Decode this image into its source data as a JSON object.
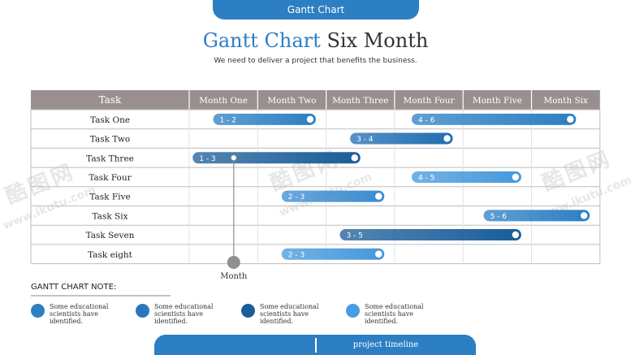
{
  "header": {
    "tab_label": "Gantt Chart"
  },
  "title": {
    "part1": "Gantt Chart",
    "part2": "Six Month"
  },
  "subtitle": "We need to deliver a project that benefits the business.",
  "watermark": {
    "brand": "酷图网",
    "url": "www.ikutu.com"
  },
  "chart_data": {
    "type": "gantt",
    "task_header": "Task",
    "columns": [
      "Month One",
      "Month Two",
      "Month Three",
      "Month Four",
      "Month Five",
      "Month Six"
    ],
    "tasks": [
      {
        "name": "Task One",
        "bars": [
          {
            "label": "1 - 2",
            "start": 0.35,
            "end": 1.85,
            "color": "#2c7fc3"
          },
          {
            "label": "4 - 6",
            "start": 3.25,
            "end": 5.65,
            "color": "#2c7fc3"
          }
        ]
      },
      {
        "name": "Task Two",
        "bars": [
          {
            "label": "3 - 4",
            "start": 2.35,
            "end": 3.85,
            "color": "#1f6db0"
          }
        ]
      },
      {
        "name": "Task Three",
        "bars": [
          {
            "label": "1 - 3",
            "start": 0.05,
            "end": 2.5,
            "color": "#1a5d99"
          }
        ]
      },
      {
        "name": "Task Four",
        "bars": [
          {
            "label": "4 - 5",
            "start": 3.25,
            "end": 4.85,
            "color": "#4598dc"
          }
        ]
      },
      {
        "name": "Task Five",
        "bars": [
          {
            "label": "2 - 3",
            "start": 1.35,
            "end": 2.85,
            "color": "#3a8bd0"
          }
        ]
      },
      {
        "name": "Task Six",
        "bars": [
          {
            "label": "5 - 6",
            "start": 4.3,
            "end": 5.85,
            "color": "#2c7fc3"
          }
        ]
      },
      {
        "name": "Task Seven",
        "bars": [
          {
            "label": "3 - 5",
            "start": 2.2,
            "end": 4.85,
            "color": "#1a5d99"
          }
        ]
      },
      {
        "name": "Task eight",
        "bars": [
          {
            "label": "2 - 3",
            "start": 1.35,
            "end": 2.85,
            "color": "#4598dc"
          }
        ]
      }
    ],
    "marker": {
      "label": "Month",
      "position": 0.65
    }
  },
  "notes": {
    "title": "GANTT CHART  NOTE:",
    "items": [
      {
        "text": "Some educational scientists have identified.",
        "color": "#2c7fc3"
      },
      {
        "text": "Some educational scientists have identified.",
        "color": "#2a78bb"
      },
      {
        "text": "Some educational scientists have identified.",
        "color": "#1a5d99"
      },
      {
        "text": "Some educational scientists have identified.",
        "color": "#4a9be0"
      }
    ]
  },
  "footer": {
    "label": "project timeline"
  }
}
